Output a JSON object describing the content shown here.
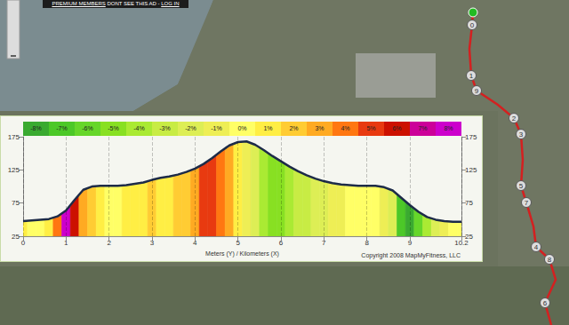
{
  "chart_data": {
    "type": "area",
    "x": [
      0,
      0.2,
      0.4,
      0.6,
      0.8,
      1.0,
      1.2,
      1.4,
      1.6,
      1.8,
      2.0,
      2.2,
      2.4,
      2.6,
      2.8,
      3.0,
      3.2,
      3.4,
      3.6,
      3.8,
      4.0,
      4.2,
      4.4,
      4.6,
      4.8,
      5.0,
      5.2,
      5.4,
      5.6,
      5.8,
      6.0,
      6.2,
      6.4,
      6.6,
      6.8,
      7.0,
      7.2,
      7.4,
      7.6,
      7.8,
      8.0,
      8.2,
      8.4,
      8.6,
      8.8,
      9.0,
      9.2,
      9.4,
      9.6,
      9.8,
      10.0,
      10.2
    ],
    "values": [
      48,
      49,
      50,
      51,
      55,
      64,
      80,
      95,
      100,
      101,
      101,
      101,
      102,
      104,
      106,
      110,
      113,
      115,
      118,
      122,
      127,
      134,
      143,
      153,
      162,
      167,
      168,
      163,
      155,
      146,
      138,
      130,
      123,
      117,
      112,
      108,
      105,
      103,
      102,
      101,
      101,
      101,
      99,
      94,
      83,
      72,
      62,
      54,
      50,
      48,
      47,
      47
    ],
    "colors": [
      "#ffee44",
      "#ffff66",
      "#ffff66",
      "#ffee44",
      "#ff7711",
      "#cc00cc",
      "#cc1100",
      "#ffaa22",
      "#ffcc33",
      "#ffee44",
      "#ffff66",
      "#ffff66",
      "#ffee44",
      "#ffee44",
      "#ffee44",
      "#ffcc33",
      "#ffee44",
      "#ffee44",
      "#ffcc33",
      "#ffcc33",
      "#ffaa22",
      "#e83a10",
      "#e83a10",
      "#ff7711",
      "#ffaa22",
      "#ffee44",
      "#eeee55",
      "#ddee55",
      "#aaea33",
      "#88e022",
      "#88e022",
      "#aaea33",
      "#c8ec44",
      "#c8ec44",
      "#ddee55",
      "#ddee55",
      "#eeee55",
      "#eeee55",
      "#ffff66",
      "#ffff66",
      "#ffff66",
      "#ffff66",
      "#eeee55",
      "#ddee55",
      "#4cc828",
      "#3aaa30",
      "#66d62a",
      "#aaea33",
      "#ddee55",
      "#eeee55",
      "#ffff66",
      "#ffff66"
    ],
    "xlim": [
      0,
      10.2
    ],
    "xticks": [
      0,
      1,
      2,
      3,
      4,
      5,
      6,
      7,
      8,
      9,
      10.2
    ],
    "ylim": [
      25,
      175
    ],
    "yticks": [
      25,
      75,
      125,
      175
    ],
    "x_label": "Meters (Y) / Kilometers (X)",
    "annotation": "Copyright 2008 MapMyFitness, LLC",
    "grid": true,
    "grade_legend": [
      {
        "value": -8,
        "label": "-8%",
        "color": "#3aaa30"
      },
      {
        "value": -7,
        "label": "-7%",
        "color": "#4cc828"
      },
      {
        "value": -6,
        "label": "-6%",
        "color": "#66d62a"
      },
      {
        "value": -5,
        "label": "-5%",
        "color": "#88e022"
      },
      {
        "value": -4,
        "label": "-4%",
        "color": "#aaea33"
      },
      {
        "value": -3,
        "label": "-3%",
        "color": "#c8ec44"
      },
      {
        "value": -2,
        "label": "-2%",
        "color": "#ddee55"
      },
      {
        "value": -1,
        "label": "-1%",
        "color": "#eeee55"
      },
      {
        "value": 0,
        "label": "0%",
        "color": "#ffff66"
      },
      {
        "value": 1,
        "label": "1%",
        "color": "#ffee44"
      },
      {
        "value": 2,
        "label": "2%",
        "color": "#ffcc33"
      },
      {
        "value": 3,
        "label": "3%",
        "color": "#ffaa22"
      },
      {
        "value": 4,
        "label": "4%",
        "color": "#ff7711"
      },
      {
        "value": 5,
        "label": "5%",
        "color": "#e83a10"
      },
      {
        "value": 6,
        "label": "6%",
        "color": "#cc1100"
      },
      {
        "value": 7,
        "label": "7%",
        "color": "#cc0099"
      },
      {
        "value": 8,
        "label": "8%",
        "color": "#cc00cc"
      }
    ]
  },
  "ad": {
    "link1": "PREMIUM MEMBERS",
    "middle": " DONT SEE THIS AD - ",
    "link2": "LOG IN"
  },
  "route_markers": [
    "0",
    "1",
    "9",
    "2",
    "3",
    "5",
    "7",
    "4",
    "8",
    "6"
  ]
}
